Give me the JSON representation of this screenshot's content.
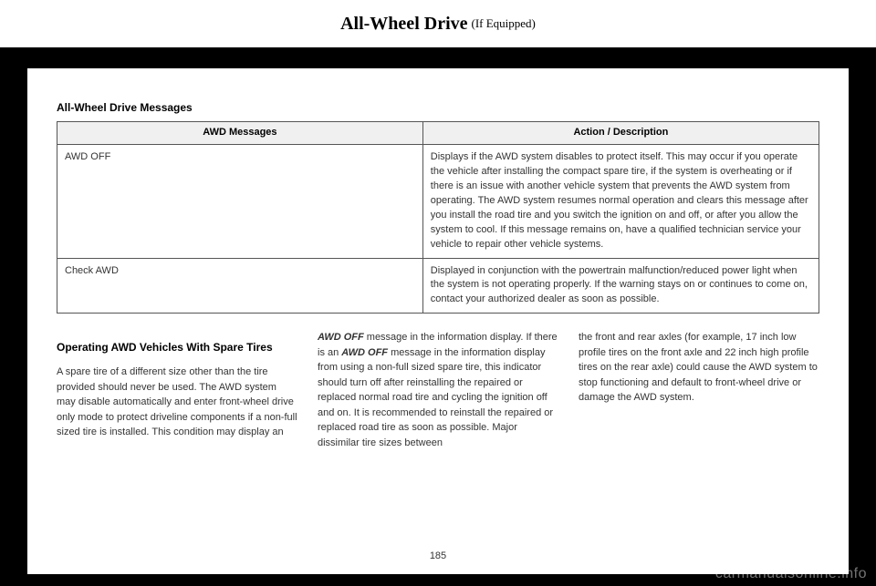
{
  "header": {
    "title": "All-Wheel Drive",
    "subtitle": "(If Equipped)"
  },
  "section_heading": "All-Wheel Drive Messages",
  "table": {
    "columns": [
      "AWD Messages",
      "Action / Description"
    ],
    "rows": [
      {
        "msg": "AWD OFF",
        "desc": "Displays if the AWD system disables to protect itself. This may occur if you operate the vehicle after installing the compact spare tire, if the system is overheating or if there is an issue with another vehicle system that prevents the AWD system from operating. The AWD system resumes normal operation and clears this message after you install the road tire and you switch the ignition on and off, or after you allow the system to cool. If this message remains on, have a qualified technician service your vehicle to repair other vehicle systems."
      },
      {
        "msg": "Check AWD",
        "desc": "Displayed in conjunction with the powertrain malfunction/reduced power light when the system is not operating properly. If the warning stays on or continues to come on, contact your authorized dealer as soon as possible."
      }
    ]
  },
  "body": {
    "col1_heading": "Operating AWD Vehicles With Spare Tires",
    "col1_p1": "A spare tire of a different size other than the tire provided should never be used. The AWD system may disable automatically and enter front-wheel drive only mode to protect driveline components if a non-full sized tire is installed. This condition may display an",
    "col2_bold1": "AWD OFF",
    "col2_p1a": " message in the information display. If there is an ",
    "col2_bold2": "AWD OFF",
    "col2_p1b": " message in the information display from using a non-full sized spare tire, this indicator should turn off after reinstalling the repaired or replaced normal road tire and cycling the ignition off and on. It is recommended to reinstall the repaired or replaced road tire as soon as possible. Major dissimilar tire sizes between",
    "col3_p1": "the front and rear axles (for example, 17 inch low profile tires on the front axle and 22 inch high profile tires on the rear axle) could cause the AWD system to stop functioning and default to front-wheel drive or damage the AWD system."
  },
  "page_number": "185",
  "watermark": "carmanualsonline.info",
  "colors": {
    "page_bg": "#ffffff",
    "outer_bg": "#000000",
    "table_header_bg": "#f0f0f0",
    "border": "#555555",
    "text": "#333333"
  }
}
